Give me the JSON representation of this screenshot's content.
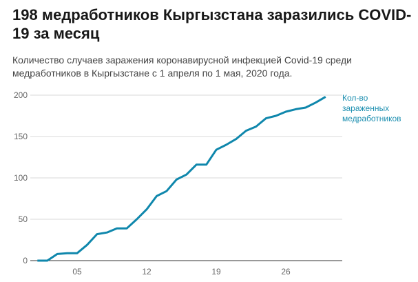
{
  "title": "198 медработников Кыргызстана заразились COVID-19 за месяц",
  "subtitle": "Количество случаев заражения коронавирусной инфекцией Covid-19 среди медработников в Кыргызстане с 1 апреля по 1 мая, 2020 года.",
  "chart_data": {
    "type": "line",
    "title": "198 медработников Кыргызстана заразились COVID-19 за месяц",
    "xlabel": "",
    "ylabel": "",
    "x": [
      1,
      2,
      3,
      4,
      5,
      6,
      7,
      8,
      9,
      10,
      11,
      12,
      13,
      14,
      15,
      16,
      17,
      18,
      19,
      20,
      21,
      22,
      23,
      24,
      25,
      26,
      27,
      28,
      29,
      30
    ],
    "series": [
      {
        "name": "Кол-во зараженных медработников",
        "label_lines": [
          "Кол-во",
          "зараженных",
          "медработников"
        ],
        "color": "#0f87ac",
        "values": [
          0,
          0,
          8,
          9,
          9,
          19,
          32,
          34,
          39,
          39,
          50,
          62,
          78,
          84,
          98,
          104,
          116,
          116,
          134,
          140,
          147,
          157,
          162,
          172,
          175,
          180,
          183,
          185,
          191,
          198
        ]
      }
    ],
    "xticks": [
      {
        "v": 5,
        "label": "05"
      },
      {
        "v": 12,
        "label": "12"
      },
      {
        "v": 19,
        "label": "19"
      },
      {
        "v": 26,
        "label": "26"
      }
    ],
    "yticks": [
      0,
      50,
      100,
      150,
      200
    ],
    "ylim": [
      0,
      200
    ],
    "xlim": [
      1,
      30
    ],
    "grid": true,
    "legend": "end-of-line"
  }
}
